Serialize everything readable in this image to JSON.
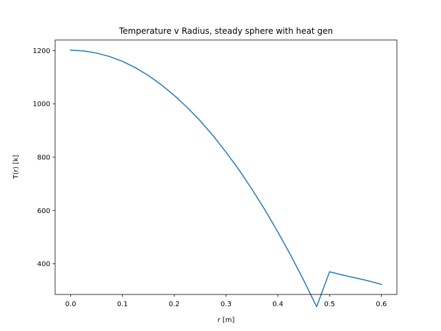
{
  "chart_data": {
    "type": "line",
    "title": "Temperature v Radius, steady sphere with heat gen",
    "xlabel": "r [m]",
    "ylabel": "T(r) [k]",
    "xlim": [
      -0.03,
      0.63
    ],
    "ylim": [
      285,
      1240
    ],
    "xticks": [
      0.0,
      0.1,
      0.2,
      0.3,
      0.4,
      0.5,
      0.6
    ],
    "xtick_labels": [
      "0.0",
      "0.1",
      "0.2",
      "0.3",
      "0.4",
      "0.5",
      "0.6"
    ],
    "yticks": [
      400,
      600,
      800,
      1000,
      1200
    ],
    "ytick_labels": [
      "400",
      "600",
      "800",
      "1000",
      "1200"
    ],
    "grid": false,
    "legend": false,
    "series": [
      {
        "color": "#1f77b4",
        "x": [
          0.0,
          0.025,
          0.05,
          0.075,
          0.1,
          0.125,
          0.15,
          0.175,
          0.2,
          0.225,
          0.25,
          0.275,
          0.3,
          0.325,
          0.35,
          0.375,
          0.4,
          0.425,
          0.45,
          0.475,
          0.5,
          0.525,
          0.55,
          0.575,
          0.6
        ],
        "y": [
          1202,
          1199,
          1191,
          1178,
          1160,
          1136,
          1107,
          1072,
          1032,
          987,
          937,
          881,
          819,
          753,
          680,
          603,
          520,
          432,
          338,
          239,
          370,
          358,
          347,
          336,
          323
        ]
      }
    ]
  }
}
